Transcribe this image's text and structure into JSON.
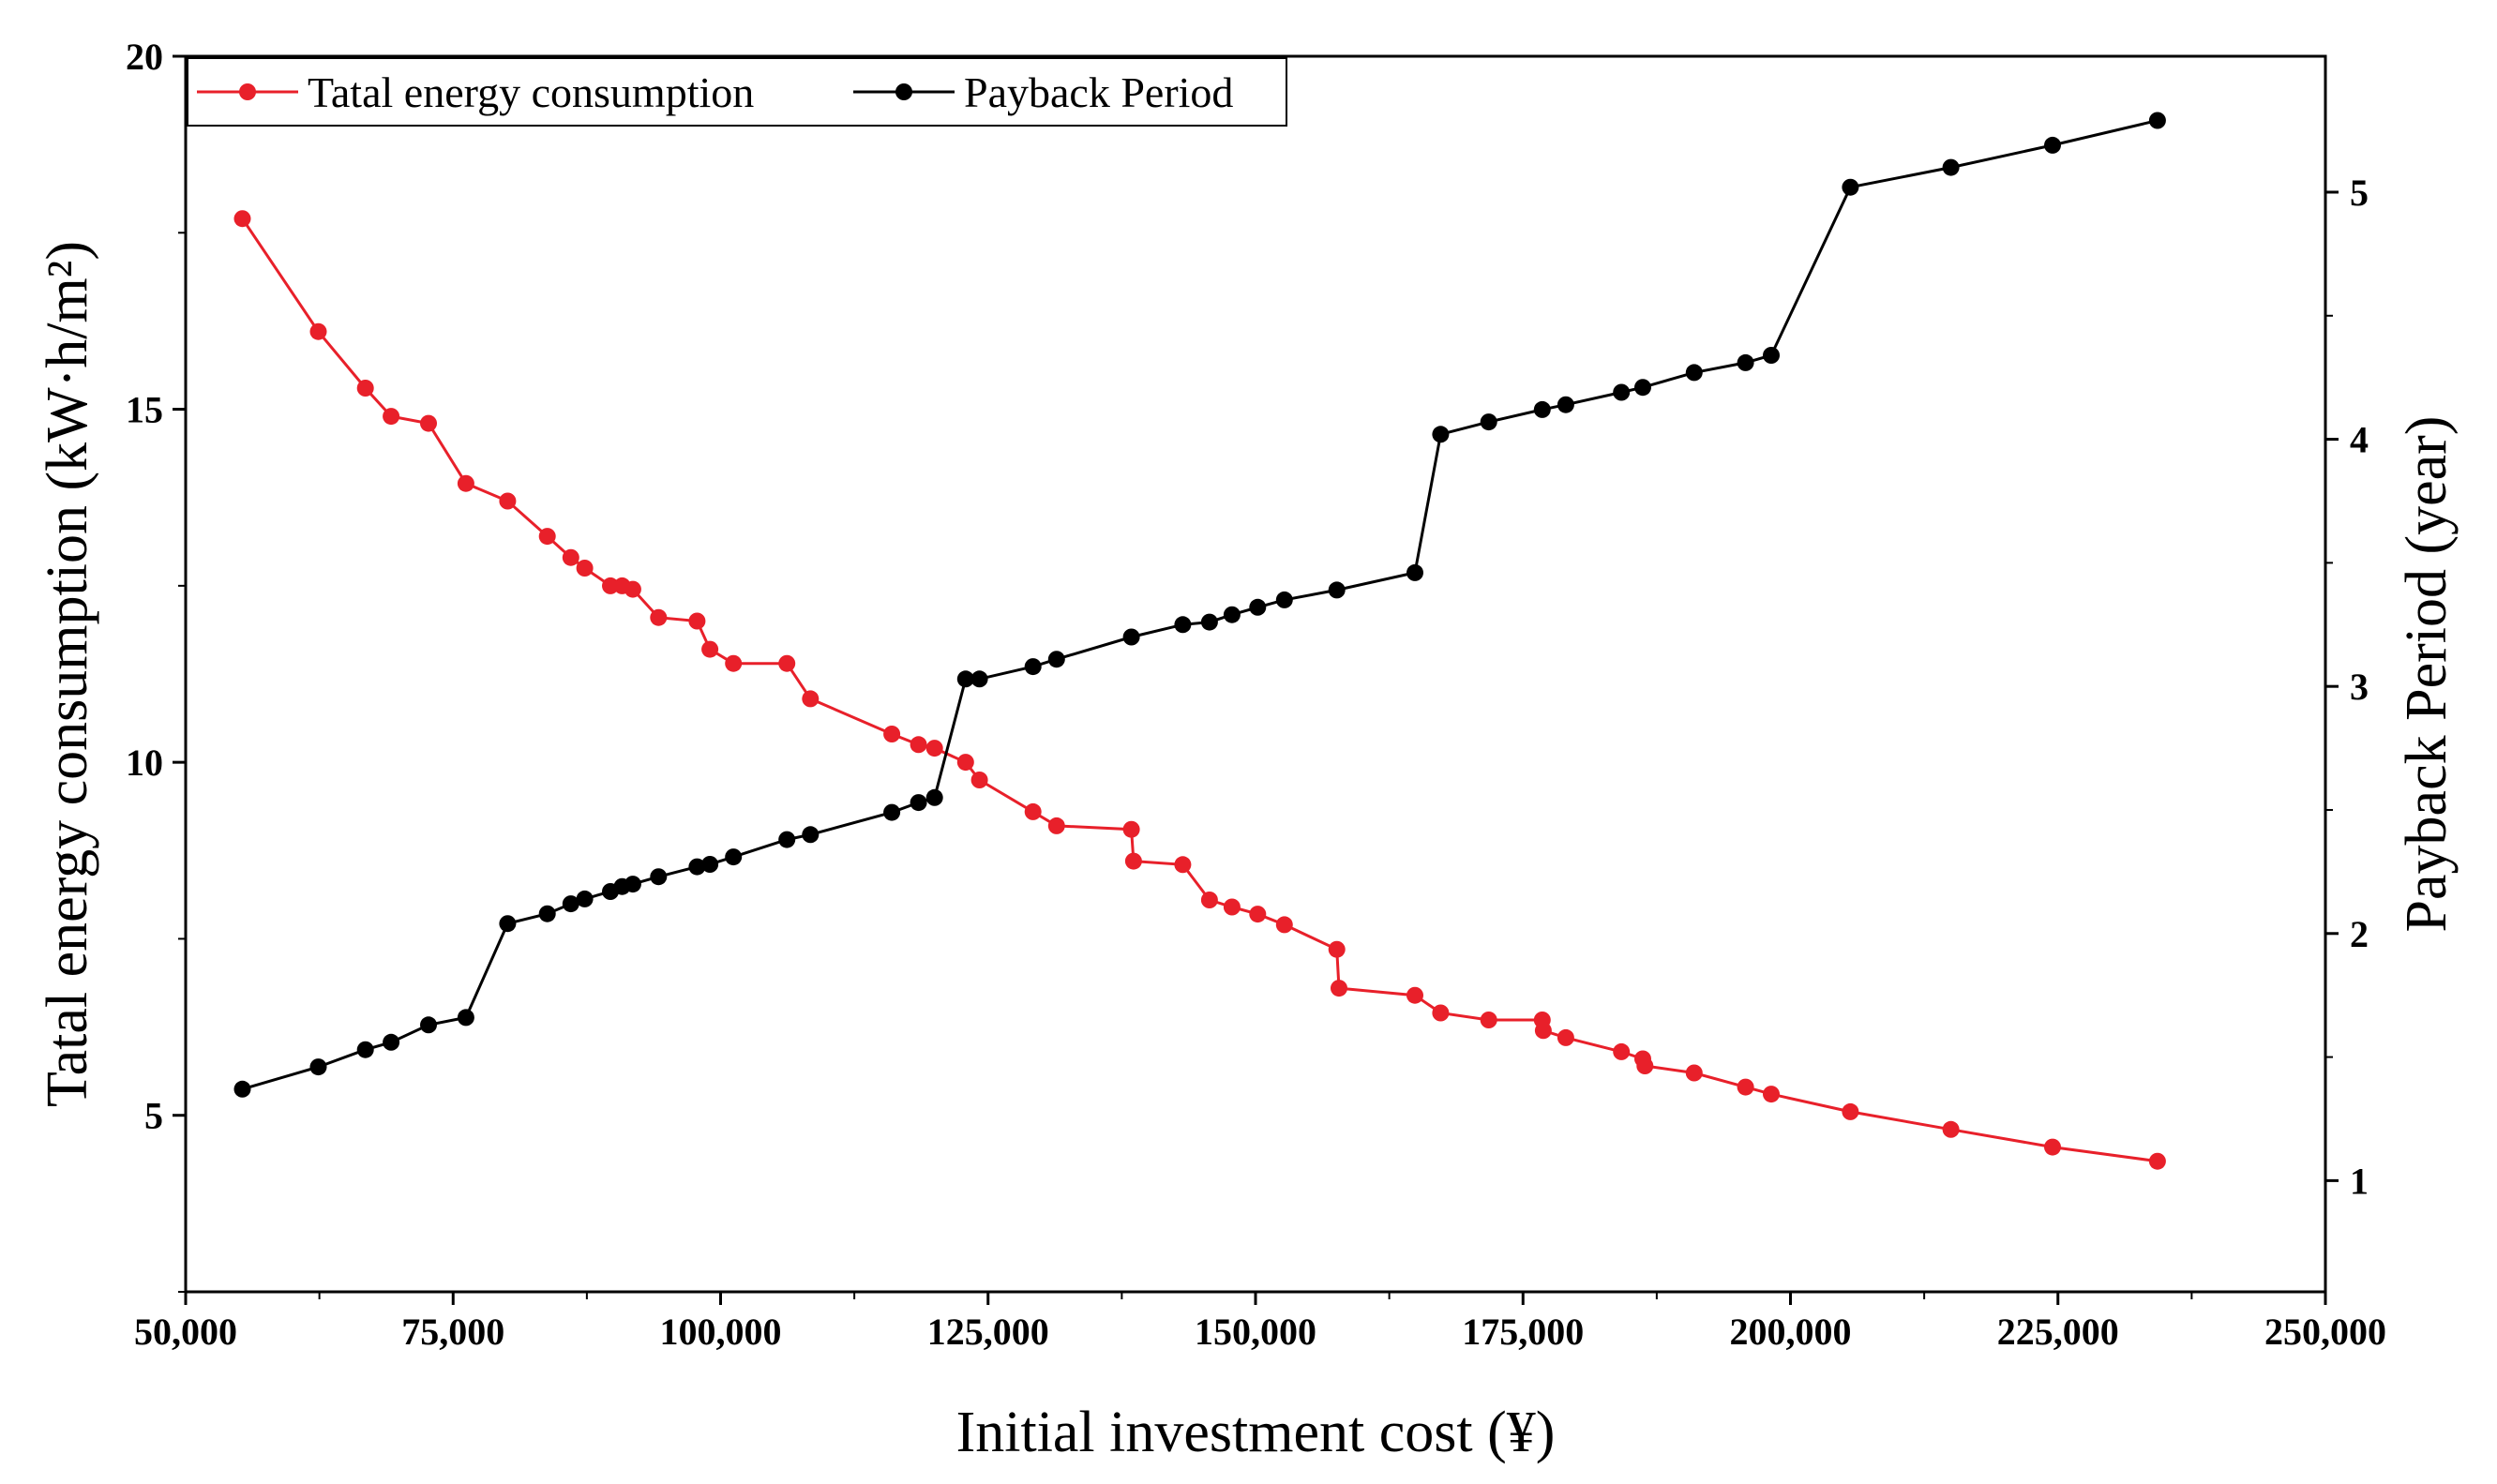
{
  "chart_data": {
    "type": "line",
    "title": "",
    "xlabel": "Initial investment cost (¥)",
    "ylabel_left": "Tatal energy consumption (kW·h/m²)",
    "ylabel_right": "Payback Period (year)",
    "xlim": [
      50000,
      250000
    ],
    "ylim_left": [
      2.5,
      20
    ],
    "ylim_right": [
      0.55,
      5.55
    ],
    "x_ticks": [
      50000,
      75000,
      100000,
      125000,
      150000,
      175000,
      200000,
      225000,
      250000
    ],
    "x_tick_labels": [
      "50,000",
      "75,000",
      "100,000",
      "125,000",
      "150,000",
      "175,000",
      "200,000",
      "225,000",
      "250,000"
    ],
    "y_left_ticks": [
      5,
      10,
      15,
      20
    ],
    "y_left_tick_labels": [
      "5",
      "10",
      "15",
      "20"
    ],
    "y_right_ticks": [
      1,
      2,
      3,
      4,
      5
    ],
    "y_right_tick_labels": [
      "1",
      "2",
      "3",
      "4",
      "5"
    ],
    "grid": false,
    "legend_position": "top-left",
    "series": [
      {
        "name": "Tatal energy consumption",
        "axis": "left",
        "color": "#e8202a",
        "x": [
          55300,
          62400,
          66800,
          69200,
          72700,
          76200,
          80100,
          83800,
          86000,
          87300,
          89700,
          90800,
          91800,
          94200,
          97800,
          99000,
          101200,
          106200,
          108400,
          116000,
          118500,
          120000,
          122900,
          124200,
          129200,
          131400,
          138400,
          138600,
          143200,
          145700,
          147800,
          150200,
          152700,
          157600,
          157800,
          164900,
          167300,
          171800,
          176800,
          176900,
          179000,
          184200,
          186200,
          186400,
          191000,
          195800,
          198200,
          205600,
          215000,
          224500,
          234300
        ],
        "y": [
          17.7,
          16.1,
          15.3,
          14.9,
          14.8,
          13.95,
          13.7,
          13.2,
          12.9,
          12.75,
          12.5,
          12.5,
          12.45,
          12.05,
          12.0,
          11.6,
          11.4,
          11.4,
          10.9,
          10.4,
          10.25,
          10.2,
          10.0,
          9.75,
          9.3,
          9.1,
          9.05,
          8.6,
          8.55,
          8.05,
          7.95,
          7.85,
          7.7,
          7.35,
          6.8,
          6.7,
          6.45,
          6.35,
          6.35,
          6.2,
          6.1,
          5.9,
          5.8,
          5.7,
          5.6,
          5.4,
          5.3,
          5.05,
          4.8,
          4.55,
          4.35
        ]
      },
      {
        "name": "Payback Period",
        "axis": "right",
        "color": "#000000",
        "x": [
          55300,
          62400,
          66800,
          69200,
          72700,
          76200,
          80100,
          83800,
          86000,
          87300,
          89700,
          90800,
          91800,
          94200,
          97800,
          99000,
          101200,
          106200,
          108400,
          116000,
          118500,
          120000,
          122900,
          124200,
          129200,
          131400,
          138400,
          143200,
          145700,
          147800,
          150200,
          152700,
          157600,
          164900,
          167300,
          171800,
          176800,
          179000,
          184200,
          186200,
          191000,
          195800,
          198200,
          205600,
          215000,
          224500,
          234300
        ],
        "y": [
          1.37,
          1.46,
          1.53,
          1.56,
          1.63,
          1.66,
          2.04,
          2.08,
          2.12,
          2.14,
          2.17,
          2.19,
          2.2,
          2.23,
          2.27,
          2.28,
          2.31,
          2.38,
          2.4,
          2.49,
          2.53,
          2.55,
          3.03,
          3.03,
          3.08,
          3.11,
          3.2,
          3.25,
          3.26,
          3.29,
          3.32,
          3.35,
          3.39,
          3.46,
          4.02,
          4.07,
          4.12,
          4.14,
          4.19,
          4.21,
          4.27,
          4.31,
          4.34,
          5.02,
          5.1,
          5.19,
          5.29
        ]
      }
    ]
  }
}
